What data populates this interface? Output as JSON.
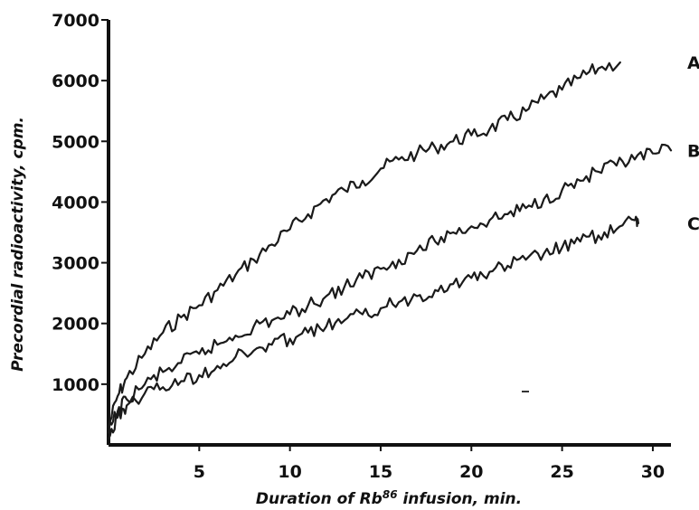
{
  "chart_data": {
    "type": "line",
    "title": "",
    "xlabel": "Duration of Rb86 infusion, min.",
    "xlabel_parts": {
      "before": "Duration of Rb",
      "superscript": "86",
      "after": " infusion, min."
    },
    "ylabel": "Precordial radioactivity, cpm.",
    "xlim": [
      0,
      31
    ],
    "ylim": [
      0,
      7000
    ],
    "x_ticks": [
      5,
      10,
      15,
      20,
      25,
      30
    ],
    "x_tick_labels": [
      "5",
      "10",
      "15",
      "20",
      "25",
      "30"
    ],
    "y_ticks": [
      1000,
      2000,
      3000,
      4000,
      5000,
      6000,
      7000
    ],
    "y_tick_labels": [
      "1000",
      "2000",
      "3000",
      "4000",
      "5000",
      "6000",
      "7000"
    ],
    "grid": false,
    "legend": "series labels at right end of lines",
    "series": [
      {
        "name": "A",
        "x": [
          0,
          0.5,
          1,
          2,
          3,
          4,
          5,
          6,
          7,
          8,
          9,
          10,
          11,
          12,
          13,
          14,
          15,
          16,
          17,
          18,
          19,
          20,
          21,
          22,
          23,
          24,
          25,
          26,
          27,
          28.2
        ],
        "y": [
          300,
          800,
          1100,
          1500,
          1850,
          2100,
          2300,
          2550,
          2800,
          3050,
          3300,
          3550,
          3800,
          4050,
          4200,
          4350,
          4550,
          4700,
          4800,
          4900,
          5000,
          5100,
          5200,
          5350,
          5500,
          5700,
          5850,
          6050,
          6200,
          6300
        ]
      },
      {
        "name": "B",
        "x": [
          0,
          0.5,
          1,
          2,
          3,
          4,
          5,
          6,
          7,
          8,
          9,
          10,
          11,
          12,
          13,
          14,
          15,
          16,
          17,
          18,
          19,
          20,
          21,
          22,
          23,
          24,
          25,
          26,
          27,
          28,
          29,
          30,
          31
        ],
        "y": [
          200,
          550,
          750,
          1000,
          1200,
          1350,
          1500,
          1650,
          1800,
          1950,
          2050,
          2150,
          2300,
          2450,
          2600,
          2750,
          2900,
          3050,
          3200,
          3350,
          3500,
          3600,
          3700,
          3800,
          3900,
          4050,
          4200,
          4350,
          4500,
          4600,
          4700,
          4800,
          4850
        ]
      },
      {
        "name": "C",
        "x": [
          0,
          0.5,
          1,
          2,
          3,
          4,
          5,
          6,
          7,
          8,
          9,
          10,
          11,
          12,
          13,
          14,
          15,
          16,
          17,
          18,
          19,
          20,
          21,
          22,
          23,
          24,
          25,
          26,
          27,
          28,
          29,
          29.2
        ],
        "y": [
          100,
          450,
          650,
          850,
          950,
          1050,
          1150,
          1300,
          1450,
          1550,
          1650,
          1750,
          1850,
          1950,
          2050,
          2150,
          2250,
          2350,
          2450,
          2550,
          2650,
          2750,
          2850,
          2950,
          3050,
          3150,
          3250,
          3350,
          3450,
          3550,
          3700,
          3650
        ]
      }
    ]
  }
}
